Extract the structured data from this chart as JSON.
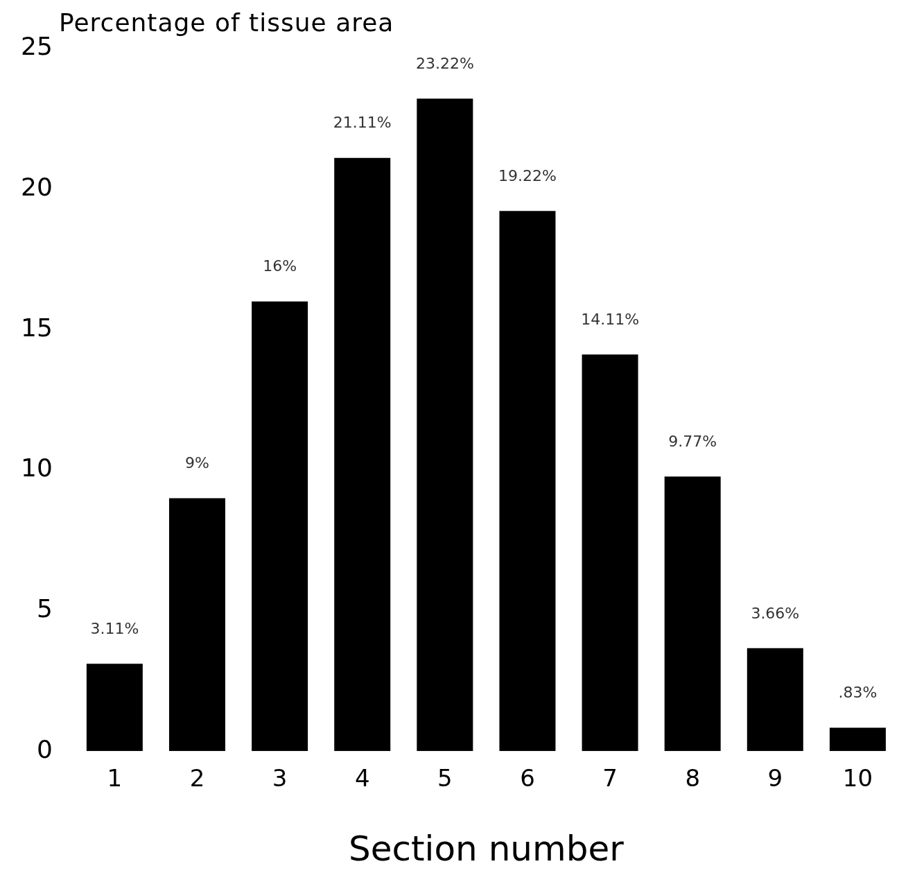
{
  "chart_data": {
    "type": "bar",
    "ylabel": "Percentage of tissue area",
    "xlabel": "Section number",
    "categories": [
      "1",
      "2",
      "3",
      "4",
      "5",
      "6",
      "7",
      "8",
      "9",
      "10"
    ],
    "values": [
      3.11,
      9,
      16,
      21.11,
      23.22,
      19.22,
      14.11,
      9.77,
      3.66,
      0.83
    ],
    "value_labels": [
      "3.11%",
      "9%",
      "16%",
      "21.11%",
      "23.22%",
      "19.22%",
      "14.11%",
      "9.77%",
      "3.66%",
      ".83%"
    ],
    "color": "#000000",
    "ylim": [
      0,
      25
    ],
    "yticks": [
      0,
      5,
      10,
      15,
      20,
      25
    ],
    "grid": false,
    "legend": false
  }
}
